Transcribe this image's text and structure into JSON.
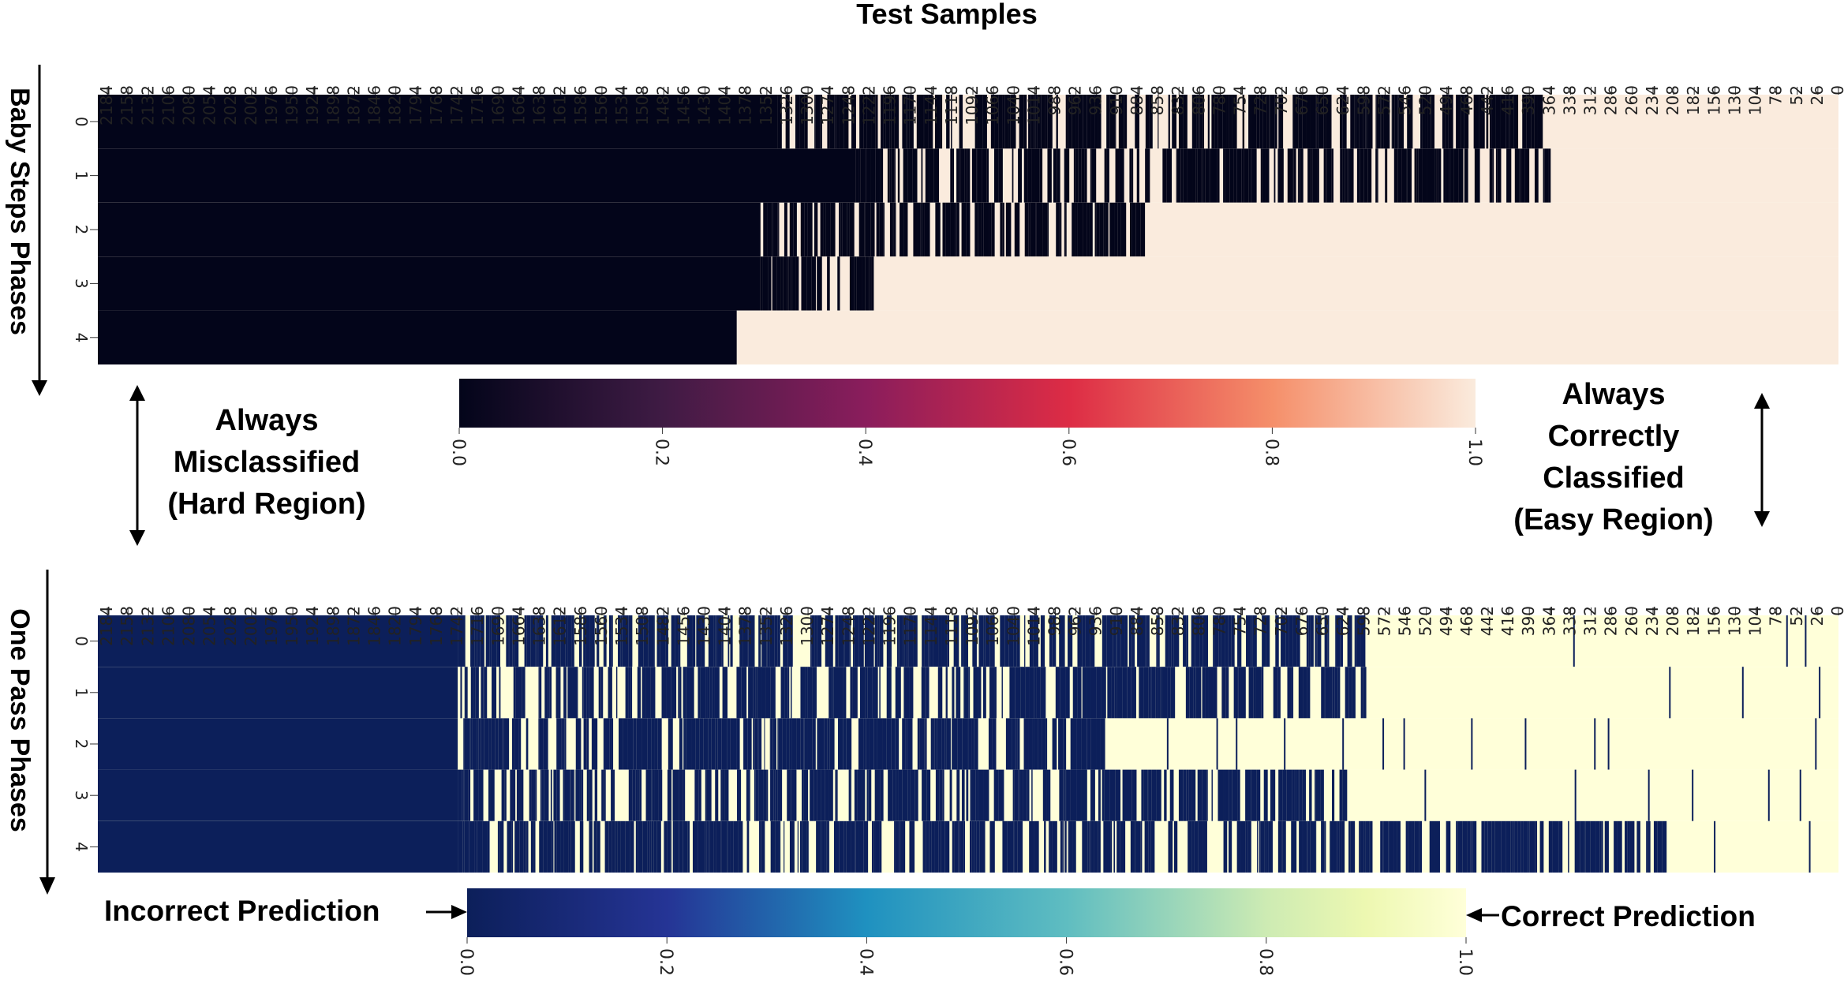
{
  "figure": {
    "top_title": "Test Samples",
    "hard_region_label": [
      "Always",
      "Misclassified",
      "(Hard Region)"
    ],
    "easy_region_label": [
      "Always",
      "Correctly",
      "Classified",
      "(Easy Region)"
    ],
    "incorrect_label": "Incorrect Prediction",
    "correct_label": "Correct Prediction"
  },
  "chart_data": [
    {
      "type": "heatmap",
      "title": "Test Samples",
      "ylabel": "Baby Steps Phases",
      "x_tick_labels": [
        "2184",
        "2158",
        "2132",
        "2106",
        "2080",
        "2054",
        "2028",
        "2002",
        "1976",
        "1950",
        "1924",
        "1898",
        "1872",
        "1846",
        "1820",
        "1794",
        "1768",
        "1742",
        "1716",
        "1690",
        "1664",
        "1638",
        "1612",
        "1586",
        "1560",
        "1534",
        "1508",
        "1482",
        "1456",
        "1430",
        "1404",
        "1378",
        "1352",
        "1326",
        "1300",
        "1274",
        "1248",
        "1222",
        "1196",
        "1170",
        "1144",
        "1118",
        "1092",
        "1066",
        "1040",
        "1014",
        "988",
        "962",
        "936",
        "910",
        "884",
        "858",
        "832",
        "806",
        "780",
        "754",
        "728",
        "702",
        "676",
        "650",
        "624",
        "598",
        "572",
        "546",
        "520",
        "494",
        "468",
        "442",
        "416",
        "390",
        "364",
        "338",
        "312",
        "286",
        "260",
        "234",
        "208",
        "182",
        "156",
        "130",
        "104",
        "78",
        "52",
        "26",
        "0"
      ],
      "y_tick_labels": [
        "0",
        "1",
        "2",
        "3",
        "4"
      ],
      "colormap": "rocket",
      "colorbar": {
        "min": 0.0,
        "max": 1.0,
        "ticks": [
          "0.0",
          "0.2",
          "0.4",
          "0.6",
          "0.8",
          "1.0"
        ],
        "colors": [
          "#03051a",
          "#4c1d4b",
          "#a11a5b",
          "#e83f3f",
          "#f69c73",
          "#faebdd"
        ]
      },
      "values_note_low": 0.0,
      "values_note_high": 1.0,
      "rows": [
        {
          "phase": 0,
          "incorrect_until_sample": 368,
          "mixed_from_sample": 1338
        },
        {
          "phase": 1,
          "incorrect_until_sample": 364,
          "mixed_from_sample": 1240
        },
        {
          "phase": 2,
          "incorrect_until_sample": 880,
          "mixed_from_sample": 1360
        },
        {
          "phase": 3,
          "incorrect_until_sample": 1220,
          "mixed_from_sample": 1360
        },
        {
          "phase": 4,
          "incorrect_until_sample": 1390,
          "mixed_from_sample": 1390
        }
      ]
    },
    {
      "type": "heatmap",
      "ylabel": "One Pass Phases",
      "x_tick_labels": [
        "2184",
        "2158",
        "2132",
        "2106",
        "2080",
        "2054",
        "2028",
        "2002",
        "1976",
        "1950",
        "1924",
        "1898",
        "1872",
        "1846",
        "1820",
        "1794",
        "1768",
        "1742",
        "1716",
        "1690",
        "1664",
        "1638",
        "1612",
        "1586",
        "1560",
        "1534",
        "1508",
        "1482",
        "1456",
        "1430",
        "1404",
        "1378",
        "1352",
        "1326",
        "1300",
        "1274",
        "1248",
        "1222",
        "1196",
        "1170",
        "1144",
        "1118",
        "1092",
        "1066",
        "1040",
        "1014",
        "988",
        "962",
        "936",
        "910",
        "884",
        "858",
        "832",
        "806",
        "780",
        "754",
        "728",
        "702",
        "676",
        "650",
        "624",
        "598",
        "572",
        "546",
        "520",
        "494",
        "468",
        "442",
        "416",
        "390",
        "364",
        "338",
        "312",
        "286",
        "260",
        "234",
        "208",
        "182",
        "156",
        "130",
        "104",
        "78",
        "52",
        "26",
        "0"
      ],
      "y_tick_labels": [
        "0",
        "1",
        "2",
        "3",
        "4"
      ],
      "colormap": "YlGnBu_r",
      "colorbar": {
        "min": 0.0,
        "max": 1.0,
        "ticks": [
          "0.0",
          "0.2",
          "0.4",
          "0.6",
          "0.8",
          "1.0"
        ],
        "colors": [
          "#0c1f5a",
          "#2a3e9c",
          "#1e8fc0",
          "#56b8c4",
          "#c6e8b4",
          "#ffffd9"
        ]
      },
      "rows": [
        {
          "phase": 0,
          "incorrect_until_sample": 598,
          "mixed_from_sample": 1742
        },
        {
          "phase": 1,
          "incorrect_until_sample": 598,
          "mixed_from_sample": 1742
        },
        {
          "phase": 2,
          "incorrect_until_sample": 930,
          "mixed_from_sample": 1742
        },
        {
          "phase": 3,
          "incorrect_until_sample": 620,
          "mixed_from_sample": 1742
        },
        {
          "phase": 4,
          "incorrect_until_sample": 222,
          "mixed_from_sample": 1742
        }
      ]
    }
  ]
}
